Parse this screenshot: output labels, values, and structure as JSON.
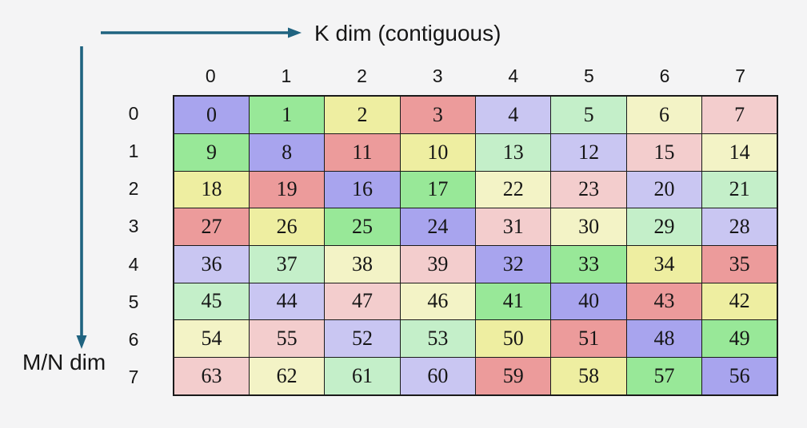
{
  "labels": {
    "k_dim": "K dim (contiguous)",
    "mn_dim": "M/N dim"
  },
  "colors": {
    "background": "#f4f4f5",
    "arrow": "#1f6380",
    "grid_border": "#1a1a1a",
    "text": "#161616",
    "palette": [
      "#a8a4ee",
      "#98e898",
      "#eeeea1",
      "#ec9b9b",
      "#c9c6f2",
      "#c4efc9",
      "#f3f3c6",
      "#f3cdcd"
    ]
  },
  "grid": {
    "col_headers": [
      "0",
      "1",
      "2",
      "3",
      "4",
      "5",
      "6",
      "7"
    ],
    "row_headers": [
      "0",
      "1",
      "2",
      "3",
      "4",
      "5",
      "6",
      "7"
    ],
    "cells": [
      [
        [
          0,
          0
        ],
        [
          1,
          1
        ],
        [
          2,
          2
        ],
        [
          3,
          3
        ],
        [
          4,
          4
        ],
        [
          5,
          5
        ],
        [
          6,
          6
        ],
        [
          7,
          7
        ]
      ],
      [
        [
          9,
          1
        ],
        [
          8,
          0
        ],
        [
          11,
          3
        ],
        [
          10,
          2
        ],
        [
          13,
          5
        ],
        [
          12,
          4
        ],
        [
          15,
          7
        ],
        [
          14,
          6
        ]
      ],
      [
        [
          18,
          2
        ],
        [
          19,
          3
        ],
        [
          16,
          0
        ],
        [
          17,
          1
        ],
        [
          22,
          6
        ],
        [
          23,
          7
        ],
        [
          20,
          4
        ],
        [
          21,
          5
        ]
      ],
      [
        [
          27,
          3
        ],
        [
          26,
          2
        ],
        [
          25,
          1
        ],
        [
          24,
          0
        ],
        [
          31,
          7
        ],
        [
          30,
          6
        ],
        [
          29,
          5
        ],
        [
          28,
          4
        ]
      ],
      [
        [
          36,
          4
        ],
        [
          37,
          5
        ],
        [
          38,
          6
        ],
        [
          39,
          7
        ],
        [
          32,
          0
        ],
        [
          33,
          1
        ],
        [
          34,
          2
        ],
        [
          35,
          3
        ]
      ],
      [
        [
          45,
          5
        ],
        [
          44,
          4
        ],
        [
          47,
          7
        ],
        [
          46,
          6
        ],
        [
          41,
          1
        ],
        [
          40,
          0
        ],
        [
          43,
          3
        ],
        [
          42,
          2
        ]
      ],
      [
        [
          54,
          6
        ],
        [
          55,
          7
        ],
        [
          52,
          4
        ],
        [
          53,
          5
        ],
        [
          50,
          2
        ],
        [
          51,
          3
        ],
        [
          48,
          0
        ],
        [
          49,
          1
        ]
      ],
      [
        [
          63,
          7
        ],
        [
          62,
          6
        ],
        [
          61,
          5
        ],
        [
          60,
          4
        ],
        [
          59,
          3
        ],
        [
          58,
          2
        ],
        [
          57,
          1
        ],
        [
          56,
          0
        ]
      ]
    ]
  }
}
